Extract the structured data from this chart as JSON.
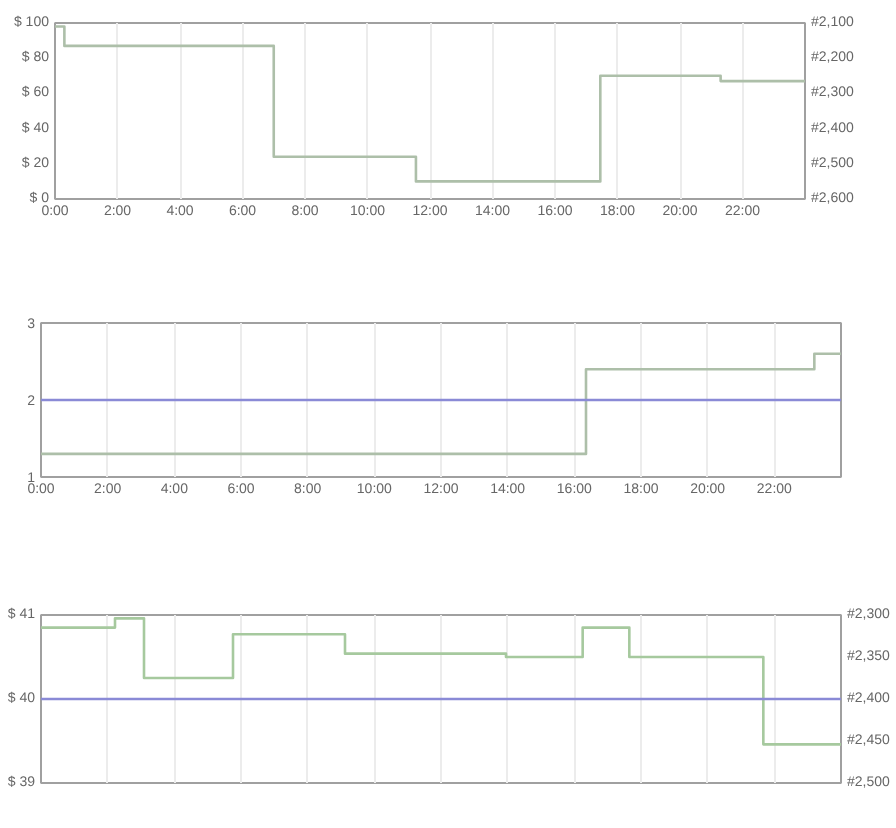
{
  "chart_data": [
    {
      "type": "step",
      "x": [
        0,
        0.3,
        7,
        11.55,
        17.45,
        21.3,
        24
      ],
      "series": [
        {
          "color": "#adbfa9",
          "values": [
            98,
            87,
            24,
            10,
            70,
            67,
            67
          ]
        }
      ],
      "xlim": [
        0,
        24
      ],
      "xticks": [
        {
          "value": 0,
          "label": "0:00"
        },
        {
          "value": 2,
          "label": "2:00"
        },
        {
          "value": 4,
          "label": "4:00"
        },
        {
          "value": 6,
          "label": "6:00"
        },
        {
          "value": 8,
          "label": "8:00"
        },
        {
          "value": 10,
          "label": "10:00"
        },
        {
          "value": 12,
          "label": "12:00"
        },
        {
          "value": 14,
          "label": "14:00"
        },
        {
          "value": 16,
          "label": "16:00"
        },
        {
          "value": 18,
          "label": "18:00"
        },
        {
          "value": 20,
          "label": "20:00"
        },
        {
          "value": 22,
          "label": "22:00"
        }
      ],
      "ylim": [
        0,
        100
      ],
      "yticks": [
        {
          "value": 0,
          "label": "$ 0"
        },
        {
          "value": 20,
          "label": "$ 20"
        },
        {
          "value": 40,
          "label": "$ 40"
        },
        {
          "value": 60,
          "label": "$ 60"
        },
        {
          "value": 80,
          "label": "$ 80"
        },
        {
          "value": 100,
          "label": "$ 100"
        }
      ],
      "y2lim": [
        2600,
        2100
      ],
      "y2ticks": [
        {
          "value": 2100,
          "label": "#2,100"
        },
        {
          "value": 2200,
          "label": "#2,200"
        },
        {
          "value": 2300,
          "label": "#2,300"
        },
        {
          "value": 2400,
          "label": "#2,400"
        },
        {
          "value": 2500,
          "label": "#2,500"
        },
        {
          "value": 2600,
          "label": "#2,600"
        }
      ],
      "grid": "x"
    },
    {
      "type": "step",
      "x": [
        0,
        16.35,
        23.2,
        24
      ],
      "series": [
        {
          "color": "#adbfa9",
          "values": [
            1.3,
            2.4,
            2.6,
            2.6
          ]
        }
      ],
      "xlim": [
        0,
        24
      ],
      "xticks": [
        {
          "value": 0,
          "label": "0:00"
        },
        {
          "value": 2,
          "label": "2:00"
        },
        {
          "value": 4,
          "label": "4:00"
        },
        {
          "value": 6,
          "label": "6:00"
        },
        {
          "value": 8,
          "label": "8:00"
        },
        {
          "value": 10,
          "label": "10:00"
        },
        {
          "value": 12,
          "label": "12:00"
        },
        {
          "value": 14,
          "label": "14:00"
        },
        {
          "value": 16,
          "label": "16:00"
        },
        {
          "value": 18,
          "label": "18:00"
        },
        {
          "value": 20,
          "label": "20:00"
        },
        {
          "value": 22,
          "label": "22:00"
        }
      ],
      "ylim": [
        1,
        3
      ],
      "yticks": [
        1,
        2,
        3
      ],
      "ref_lines": [
        {
          "axis": "y",
          "value": 2,
          "color": "#8a8ad6"
        }
      ],
      "grid": "x"
    },
    {
      "type": "step",
      "x": [
        0,
        2.22,
        3.09,
        5.76,
        9.12,
        13.95,
        16.25,
        17.65,
        21.67,
        24
      ],
      "series": [
        {
          "color": "#a6c99e",
          "values": [
            40.85,
            40.96,
            40.25,
            40.77,
            40.54,
            40.5,
            40.85,
            40.5,
            39.46,
            39.46
          ]
        }
      ],
      "xlim": [
        0,
        24
      ],
      "xticks": [
        {
          "value": 2,
          "label": null
        },
        {
          "value": 4,
          "label": null
        },
        {
          "value": 6,
          "label": null
        },
        {
          "value": 8,
          "label": null
        },
        {
          "value": 10,
          "label": null
        },
        {
          "value": 12,
          "label": null
        },
        {
          "value": 14,
          "label": null
        },
        {
          "value": 16,
          "label": null
        },
        {
          "value": 18,
          "label": null
        },
        {
          "value": 20,
          "label": null
        },
        {
          "value": 22,
          "label": null
        }
      ],
      "ylim": [
        39,
        41
      ],
      "yticks": [
        {
          "value": 39,
          "label": "$ 39"
        },
        {
          "value": 40,
          "label": "$ 40"
        },
        {
          "value": 41,
          "label": "$ 41"
        }
      ],
      "y2lim": [
        2500,
        2300
      ],
      "y2ticks": [
        {
          "value": 2300,
          "label": "#2,300"
        },
        {
          "value": 2350,
          "label": "#2,350"
        },
        {
          "value": 2400,
          "label": "#2,400"
        },
        {
          "value": 2450,
          "label": "#2,450"
        },
        {
          "value": 2500,
          "label": "#2,500"
        }
      ],
      "ref_lines": [
        {
          "axis": "y",
          "value": 40,
          "color": "#8a8ad6"
        }
      ],
      "tick_labels": "y",
      "grid": "x"
    }
  ]
}
